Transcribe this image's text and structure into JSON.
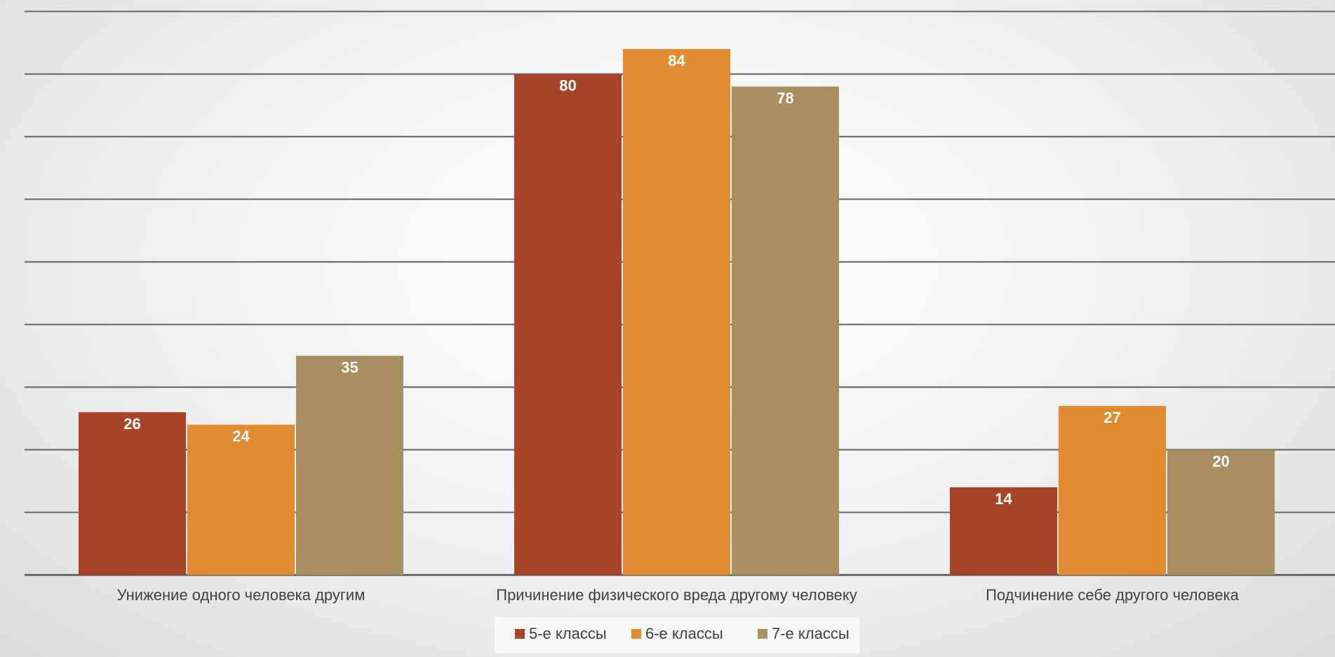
{
  "chart_data": {
    "type": "bar",
    "categories": [
      "Унижение одного человека другим",
      "Причинение физического вреда другому человеку",
      "Подчинение себе другого человека"
    ],
    "series": [
      {
        "name": "5-е классы",
        "values": [
          26,
          80,
          14
        ],
        "color": "#a8432a"
      },
      {
        "name": "6-е классы",
        "values": [
          24,
          84,
          27
        ],
        "color": "#e08a32"
      },
      {
        "name": "7-е классы",
        "values": [
          35,
          78,
          20
        ],
        "color": "#a88e60"
      }
    ],
    "ylim": [
      0,
      90
    ],
    "y_grid_step": 10,
    "grid": true,
    "data_labels": true,
    "legend_position": "bottom"
  }
}
